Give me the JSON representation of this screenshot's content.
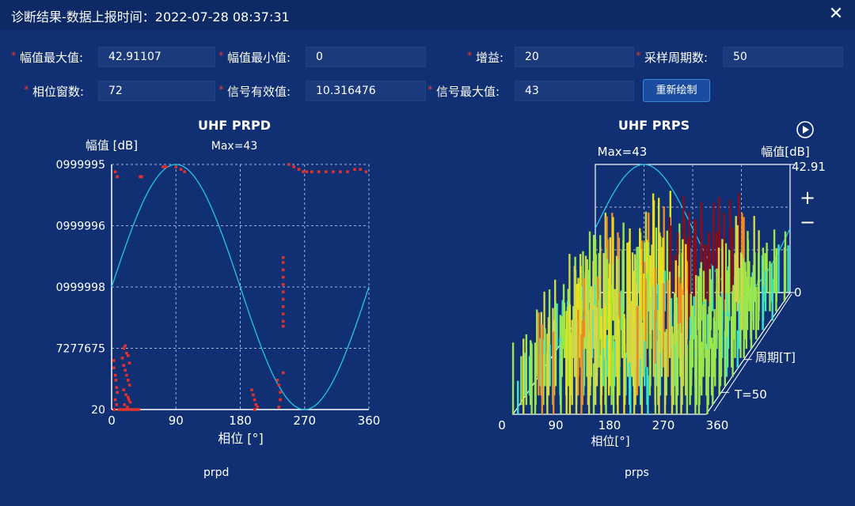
{
  "window": {
    "title": "诊断结果-数据上报时间：2022-07-28 08:37:31",
    "close_icon": "close-icon"
  },
  "form": {
    "amp_max": {
      "label": "幅值最大值:",
      "value": "42.91107"
    },
    "amp_min": {
      "label": "幅值最小值:",
      "value": "0"
    },
    "gain": {
      "label": "增益:",
      "value": "20"
    },
    "sample_cycles": {
      "label": "采样周期数:",
      "value": "50"
    },
    "phase_windows": {
      "label": "相位窗数:",
      "value": "72"
    },
    "signal_rms": {
      "label": "信号有效值:",
      "value": "10.316476"
    },
    "signal_max": {
      "label": "信号最大值:",
      "value": "43"
    },
    "redraw_label": "重新绘制",
    "required_mark": "*"
  },
  "prpd": {
    "caption": "prpd",
    "chart_data": {
      "type": "scatter",
      "title": "UHF PRPD",
      "subtitle": "Max=43",
      "ylabel": "幅值 [dB]",
      "xlabel": "相位 [°]",
      "xlim": [
        0,
        360
      ],
      "x_ticks": [
        "0",
        "90",
        "180",
        "270",
        "360"
      ],
      "y_ticks": [
        "20",
        "7277675",
        "0999998",
        "0999996",
        "0999995"
      ],
      "grid": true,
      "colors": {
        "points": "#e0302c",
        "sine": "#1ec8e6",
        "axes": "#ffffff",
        "grid": "#a0b4d8"
      },
      "sine_reference": "sine over 0-360 phase, peak at 90, trough at 270",
      "point_level_units": "fraction of y-axis height from bottom",
      "points": [
        [
          5,
          0.97
        ],
        [
          8,
          0.95
        ],
        [
          40,
          0.95
        ],
        [
          42,
          0.95
        ],
        [
          72,
          0.99
        ],
        [
          76,
          0.99
        ],
        [
          90,
          0.99
        ],
        [
          97,
          0.98
        ],
        [
          102,
          0.97
        ],
        [
          248,
          1.0
        ],
        [
          255,
          0.99
        ],
        [
          262,
          0.98
        ],
        [
          268,
          0.97
        ],
        [
          273,
          0.97
        ],
        [
          280,
          0.97
        ],
        [
          290,
          0.97
        ],
        [
          300,
          0.97
        ],
        [
          310,
          0.97
        ],
        [
          320,
          0.97
        ],
        [
          330,
          0.97
        ],
        [
          340,
          0.98
        ],
        [
          348,
          0.98
        ],
        [
          356,
          0.97
        ],
        [
          3,
          0.2
        ],
        [
          3,
          0.17
        ],
        [
          5,
          0.14
        ],
        [
          6,
          0.12
        ],
        [
          7,
          0.09
        ],
        [
          8,
          0.07
        ],
        [
          5,
          0.04
        ],
        [
          7,
          0.02
        ],
        [
          4,
          0.0
        ],
        [
          10,
          0.0
        ],
        [
          14,
          0.0
        ],
        [
          18,
          0.0
        ],
        [
          22,
          0.0
        ],
        [
          26,
          0.0
        ],
        [
          30,
          0.0
        ],
        [
          34,
          0.0
        ],
        [
          38,
          0.0
        ],
        [
          15,
          0.21
        ],
        [
          17,
          0.25
        ],
        [
          19,
          0.26
        ],
        [
          21,
          0.23
        ],
        [
          23,
          0.22
        ],
        [
          25,
          0.19
        ],
        [
          17,
          0.18
        ],
        [
          19,
          0.16
        ],
        [
          21,
          0.14
        ],
        [
          23,
          0.12
        ],
        [
          25,
          0.1
        ],
        [
          17,
          0.08
        ],
        [
          20,
          0.06
        ],
        [
          23,
          0.05
        ],
        [
          26,
          0.03
        ],
        [
          18,
          0.02
        ],
        [
          22,
          0.01
        ],
        [
          24,
          0.04
        ],
        [
          240,
          0.62
        ],
        [
          240,
          0.6
        ],
        [
          240,
          0.57
        ],
        [
          240,
          0.54
        ],
        [
          240,
          0.51
        ],
        [
          240,
          0.48
        ],
        [
          240,
          0.45
        ],
        [
          240,
          0.42
        ],
        [
          240,
          0.39
        ],
        [
          240,
          0.36
        ],
        [
          240,
          0.34
        ],
        [
          240,
          0.15
        ],
        [
          196,
          0.08
        ],
        [
          198,
          0.06
        ],
        [
          200,
          0.04
        ],
        [
          202,
          0.02
        ],
        [
          200,
          0.0
        ],
        [
          204,
          0.01
        ],
        [
          232,
          0.12
        ],
        [
          234,
          0.1
        ],
        [
          236,
          0.07
        ],
        [
          236,
          0.04
        ],
        [
          234,
          0.01
        ]
      ]
    },
    "axis_labels": {
      "x0": "0",
      "x90": "90",
      "x180": "180",
      "x270": "270",
      "x360": "360"
    }
  },
  "prps": {
    "caption": "prps",
    "play_icon": "play-circle-icon",
    "zoom_in": "+",
    "zoom_out": "−",
    "chart_data": {
      "type": "bar",
      "title": "UHF PRPS",
      "subtitle": "Max=43",
      "zlabel": "幅值[dB]",
      "zmax_label": "42.91",
      "zmin_label": "0",
      "xlabel": "相位[°]",
      "x_ticks": [
        "0",
        "90",
        "180",
        "270",
        "360"
      ],
      "period_label": "周期[T]",
      "period_count_label": "T=50",
      "colors": {
        "low": "#39e6c6",
        "mid": "#9be64c",
        "high": "#d2d84a",
        "peak": "#e8e01a",
        "max": "#8a0c1a",
        "orange": "#f08a24",
        "sine": "#1ec8e6"
      },
      "amplitude_max": 42.91
    }
  }
}
